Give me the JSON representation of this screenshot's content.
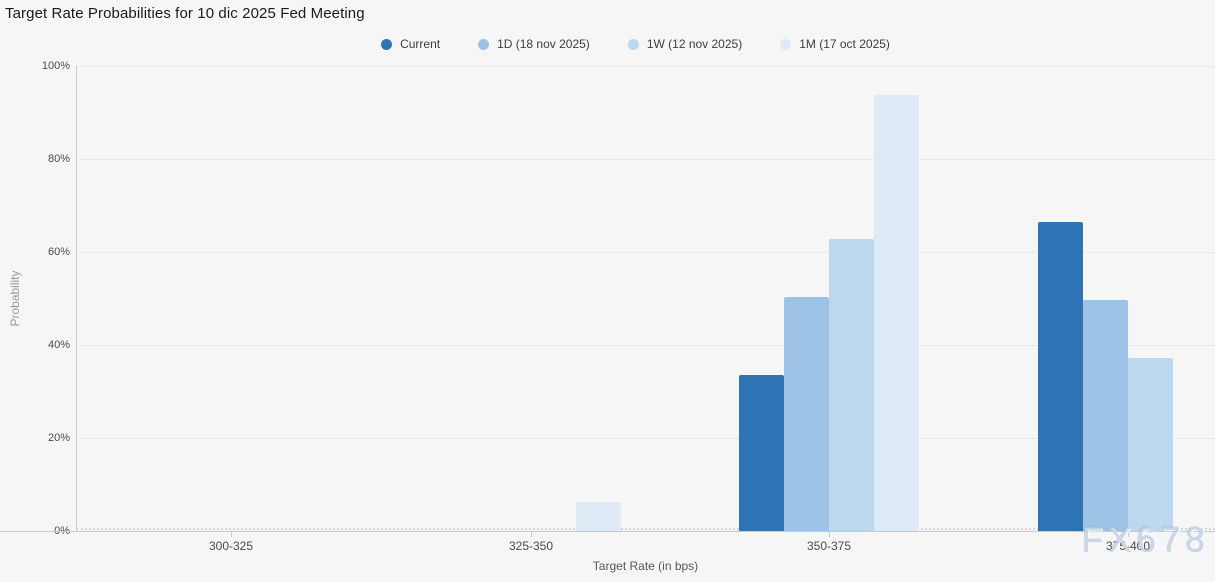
{
  "title": "Target Rate Probabilities for 10 dic 2025 Fed Meeting",
  "watermark": "FX678",
  "chart_data": {
    "type": "bar",
    "title": "Target Rate Probabilities for 10 dic 2025 Fed Meeting",
    "categories": [
      "300-325",
      "325-350",
      "350-375",
      "375-400"
    ],
    "series": [
      {
        "name": "Current",
        "color": "#2e74b5",
        "values": [
          0,
          0,
          33.5,
          66.5
        ]
      },
      {
        "name": "1D (18 nov 2025)",
        "color": "#9cc3e6",
        "values": [
          0,
          0,
          50.3,
          49.7
        ]
      },
      {
        "name": "1W (12 nov 2025)",
        "color": "#bdd7ee",
        "values": [
          0,
          0,
          62.8,
          37.2
        ]
      },
      {
        "name": "1M (17 oct 2025)",
        "color": "#deebf6",
        "values": [
          0,
          6.3,
          93.7,
          0
        ]
      }
    ],
    "xlabel": "Target Rate (in bps)",
    "ylabel": "Probability",
    "ylim": [
      0,
      100
    ],
    "yticks": [
      0,
      20,
      40,
      60,
      80,
      100
    ],
    "ytick_suffix": "%",
    "legend_position": "top",
    "grid": "dotted-horizontal"
  }
}
